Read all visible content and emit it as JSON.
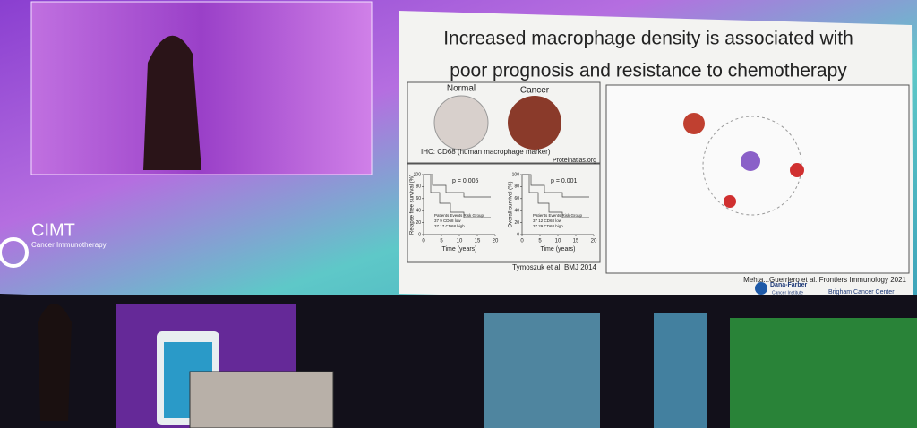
{
  "screen": {
    "logo": {
      "name": "CIMT",
      "subtitle": "Cancer Immunotherapy"
    }
  },
  "slide": {
    "title": [
      "Increased macrophage density is associated with",
      "poor prognosis and resistance to chemotherapy"
    ],
    "ihc": {
      "normal_label": "Normal",
      "cancer_label": "Cancer",
      "caption": "IHC: CD68 (human macrophage marker)",
      "source": "Proteinatlas.org"
    },
    "plots": [
      {
        "y_label": "Relapse free survival (%)",
        "p_value": "p = 0.005",
        "x_label": "Time (years)",
        "yticks": [
          0,
          20,
          40,
          60,
          80,
          100
        ],
        "xticks": [
          0,
          5,
          10,
          15,
          20
        ],
        "legend": [
          "Patients Events Risk Group",
          "37 9 CD68 low",
          "37 17 CD68 high"
        ]
      },
      {
        "y_label": "Overall survival (%)",
        "p_value": "p = 0.001",
        "x_label": "Time (years)",
        "yticks": [
          0,
          20,
          40,
          60,
          80,
          100
        ],
        "xticks": [
          0,
          5,
          10,
          15,
          20
        ],
        "legend": [
          "Patients Events Risk Group",
          "37 12 CD68 low",
          "37 29 CD68 high"
        ]
      }
    ],
    "citation_left": "Tymoszuk et al. BMJ 2014",
    "citation_right": "Mehta...Guerriero et al. Frontiers Immunology 2021",
    "logos": [
      "Dana-Farber",
      "Cancer Institute",
      "Brigham Cancer Center"
    ]
  }
}
